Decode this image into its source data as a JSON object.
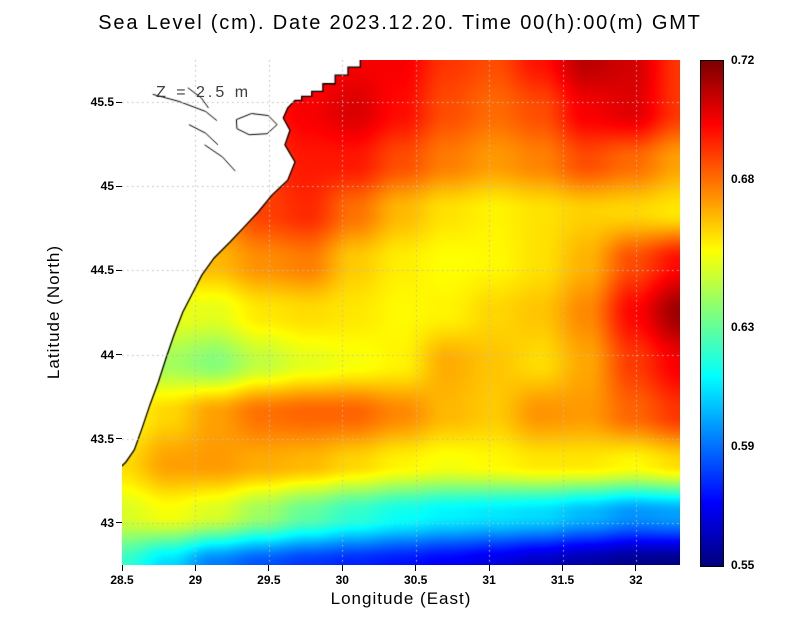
{
  "chart_data": {
    "type": "heatmap",
    "title": "Sea Level (cm). Date 2023.12.20. Time 00(h):00(m) GMT",
    "xlabel": "Longitude (East)",
    "ylabel": "Latitude (North)",
    "annotation": "Z = 2.5 m",
    "colormap": "jet",
    "x_range": [
      28.5,
      32.3
    ],
    "y_range": [
      42.75,
      45.75
    ],
    "x_ticks": [
      28.5,
      29,
      29.5,
      30,
      30.5,
      31,
      31.5,
      32
    ],
    "x_tick_labels": [
      "28.5",
      "29",
      "29.5",
      "30",
      "30.5",
      "31",
      "31.5",
      "32"
    ],
    "y_ticks": [
      45.5,
      45,
      44.5,
      44,
      43.5,
      43
    ],
    "y_tick_labels": [
      "45.5",
      "45",
      "44.5",
      "44",
      "43.5",
      "43"
    ],
    "grid_on": true,
    "legend_position": "right-colorbar",
    "colorbar": {
      "min": 0.55,
      "max": 0.72,
      "ticks": [
        0.72,
        0.68,
        0.63,
        0.59,
        0.55
      ],
      "tick_labels": [
        "0.72",
        "0.68",
        "0.63",
        "0.59",
        "0.55"
      ]
    },
    "grid": {
      "note": "estimated sea-level field; rows north to south (lat 45.75 to 42.75), cols west to east (lon 28.5 to 32.3); land-covered cells hold extrapolated values",
      "values": [
        [
          0.69,
          0.69,
          0.692,
          0.694,
          0.696,
          0.7,
          0.7,
          0.69,
          0.686,
          0.696,
          0.71,
          0.706,
          0.69
        ],
        [
          0.688,
          0.688,
          0.69,
          0.694,
          0.7,
          0.705,
          0.697,
          0.686,
          0.681,
          0.686,
          0.7,
          0.704,
          0.69
        ],
        [
          0.68,
          0.68,
          0.682,
          0.69,
          0.695,
          0.695,
          0.686,
          0.678,
          0.673,
          0.677,
          0.686,
          0.681,
          0.672
        ],
        [
          0.672,
          0.672,
          0.676,
          0.688,
          0.692,
          0.68,
          0.668,
          0.661,
          0.658,
          0.661,
          0.664,
          0.663,
          0.66
        ],
        [
          0.664,
          0.665,
          0.668,
          0.675,
          0.678,
          0.665,
          0.659,
          0.656,
          0.657,
          0.661,
          0.669,
          0.686,
          0.697
        ],
        [
          0.652,
          0.653,
          0.652,
          0.66,
          0.662,
          0.66,
          0.657,
          0.658,
          0.663,
          0.666,
          0.676,
          0.698,
          0.715
        ],
        [
          0.646,
          0.641,
          0.636,
          0.646,
          0.652,
          0.655,
          0.658,
          0.67,
          0.666,
          0.662,
          0.671,
          0.689,
          0.7
        ],
        [
          0.656,
          0.663,
          0.672,
          0.68,
          0.682,
          0.682,
          0.676,
          0.668,
          0.665,
          0.674,
          0.673,
          0.682,
          0.69
        ],
        [
          0.662,
          0.672,
          0.673,
          0.67,
          0.668,
          0.663,
          0.658,
          0.655,
          0.657,
          0.66,
          0.66,
          0.657,
          0.662
        ],
        [
          0.65,
          0.655,
          0.65,
          0.64,
          0.63,
          0.622,
          0.616,
          0.612,
          0.61,
          0.608,
          0.602,
          0.596,
          0.598
        ],
        [
          0.622,
          0.608,
          0.592,
          0.585,
          0.58,
          0.577,
          0.574,
          0.57,
          0.566,
          0.561,
          0.556,
          0.552,
          0.551
        ]
      ]
    },
    "land": {
      "note": "coastline in normalized plot coords (0-1), from top edge to left edge; land fills area to upper-left",
      "coast": [
        [
          0.427,
          0.0
        ],
        [
          0.427,
          0.014
        ],
        [
          0.405,
          0.014
        ],
        [
          0.405,
          0.03
        ],
        [
          0.382,
          0.03
        ],
        [
          0.382,
          0.047
        ],
        [
          0.36,
          0.047
        ],
        [
          0.36,
          0.062
        ],
        [
          0.34,
          0.062
        ],
        [
          0.34,
          0.072
        ],
        [
          0.322,
          0.072
        ],
        [
          0.322,
          0.08
        ],
        [
          0.31,
          0.08
        ],
        [
          0.297,
          0.095
        ],
        [
          0.289,
          0.115
        ],
        [
          0.301,
          0.139
        ],
        [
          0.292,
          0.168
        ],
        [
          0.31,
          0.202
        ],
        [
          0.297,
          0.238
        ],
        [
          0.269,
          0.267
        ],
        [
          0.244,
          0.301
        ],
        [
          0.217,
          0.333
        ],
        [
          0.194,
          0.36
        ],
        [
          0.165,
          0.392
        ],
        [
          0.143,
          0.426
        ],
        [
          0.125,
          0.465
        ],
        [
          0.109,
          0.499
        ],
        [
          0.093,
          0.545
        ],
        [
          0.079,
          0.59
        ],
        [
          0.065,
          0.638
        ],
        [
          0.05,
          0.683
        ],
        [
          0.036,
          0.729
        ],
        [
          0.022,
          0.772
        ],
        [
          0.007,
          0.796
        ],
        [
          0.0,
          0.804
        ]
      ],
      "inland_lines": [
        [
          [
            0.055,
            0.068
          ],
          [
            0.102,
            0.082
          ],
          [
            0.15,
            0.102
          ],
          [
            0.17,
            0.12
          ]
        ],
        [
          [
            0.118,
            0.055
          ],
          [
            0.142,
            0.075
          ],
          [
            0.155,
            0.095
          ]
        ],
        [
          [
            0.205,
            0.118
          ],
          [
            0.232,
            0.106
          ],
          [
            0.262,
            0.11
          ],
          [
            0.278,
            0.128
          ],
          [
            0.26,
            0.146
          ],
          [
            0.228,
            0.148
          ],
          [
            0.206,
            0.136
          ],
          [
            0.205,
            0.118
          ]
        ],
        [
          [
            0.148,
            0.168
          ],
          [
            0.18,
            0.192
          ],
          [
            0.203,
            0.22
          ]
        ],
        [
          [
            0.12,
            0.128
          ],
          [
            0.15,
            0.145
          ],
          [
            0.172,
            0.168
          ]
        ]
      ]
    }
  }
}
